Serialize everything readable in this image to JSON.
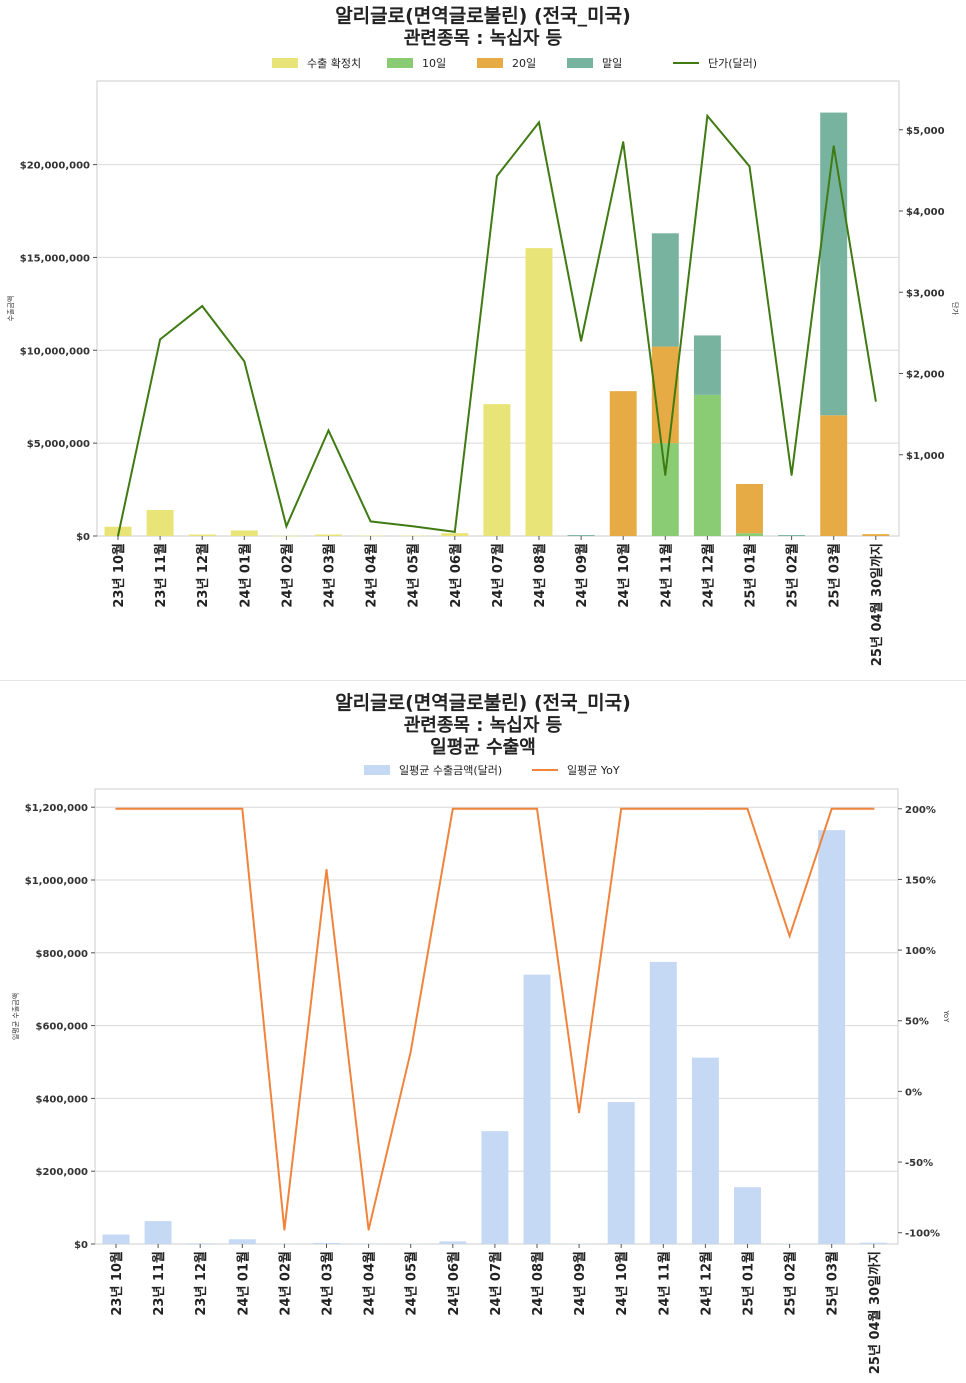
{
  "categories": [
    "23년 10월",
    "23년 11월",
    "23년 12월",
    "24년 01월",
    "24년 02월",
    "24년 03월",
    "24년 04월",
    "24년 05월",
    "24년 06월",
    "24년 07월",
    "24년 08월",
    "24년 09월",
    "24년 10월",
    "24년 11월",
    "24년 12월",
    "25년 01월",
    "25년 02월",
    "25년 03월",
    "25년 04월 30일까지"
  ],
  "chart_data": [
    {
      "type": "bar",
      "title": "알리글로(면역글로불린) (전국_미국)",
      "subtitle": "관련종목 : 녹십자 등",
      "ylabel": "수출금액",
      "y2label": "단가",
      "ylim": [
        0,
        24500000
      ],
      "y2lim": [
        0,
        5600
      ],
      "yticks": [
        0,
        5000000,
        10000000,
        15000000,
        20000000
      ],
      "ytick_labels": [
        "$0",
        "$5,000,000",
        "$10,000,000",
        "$15,000,000",
        "$20,000,000"
      ],
      "y2ticks": [
        1000,
        2000,
        3000,
        4000,
        5000
      ],
      "y2tick_labels": [
        "$1,000",
        "$2,000",
        "$3,000",
        "$4,000",
        "$5,000"
      ],
      "legend_position": "top-center",
      "grid": true,
      "series": [
        {
          "name": "수출 확정치",
          "kind": "bar",
          "color": "#e8e477",
          "values": [
            500000,
            1400000,
            80000,
            300000,
            10000,
            80000,
            20000,
            20000,
            150000,
            7100000,
            15500000,
            0,
            0,
            0,
            0,
            0,
            0,
            0,
            0
          ]
        },
        {
          "name": "10일",
          "kind": "bar",
          "color": "#89cc73",
          "values": [
            0,
            0,
            0,
            0,
            0,
            0,
            0,
            0,
            0,
            0,
            0,
            0,
            0,
            5000000,
            7600000,
            150000,
            0,
            0,
            0
          ]
        },
        {
          "name": "20일",
          "kind": "bar",
          "color": "#e7ab45",
          "values": [
            0,
            0,
            0,
            0,
            0,
            0,
            0,
            0,
            0,
            0,
            0,
            0,
            7800000,
            5200000,
            0,
            2650000,
            0,
            6500000,
            100000
          ]
        },
        {
          "name": "말일",
          "kind": "bar",
          "color": "#78b39f",
          "values": [
            0,
            0,
            0,
            0,
            0,
            0,
            0,
            0,
            0,
            0,
            0,
            50000,
            0,
            6100000,
            3200000,
            0,
            50000,
            16300000,
            0
          ]
        },
        {
          "name": "단가(달러)",
          "kind": "line",
          "color": "#3f7a12",
          "values": [
            0,
            2420,
            2830,
            2150,
            120,
            1300,
            180,
            120,
            50,
            4430,
            5090,
            2400,
            4850,
            750,
            5170,
            4550,
            750,
            4800,
            1660
          ]
        }
      ]
    },
    {
      "type": "bar",
      "title": "알리글로(면역글로불린) (전국_미국)",
      "subtitle": "관련종목 : 녹십자 등",
      "subtitle2": "일평균 수출액",
      "ylabel": "일평균 수출금액",
      "y2label": "YoY",
      "ylim": [
        0,
        1250000
      ],
      "y2lim": [
        -108,
        214
      ],
      "yticks": [
        0,
        200000,
        400000,
        600000,
        800000,
        1000000,
        1200000
      ],
      "ytick_labels": [
        "$0",
        "$200,000",
        "$400,000",
        "$600,000",
        "$800,000",
        "$1,000,000",
        "$1,200,000"
      ],
      "y2ticks": [
        -100,
        -50,
        0,
        50,
        100,
        150,
        200
      ],
      "y2tick_labels": [
        "-100%",
        "-50%",
        "0%",
        "50%",
        "100%",
        "150%",
        "200%"
      ],
      "legend_position": "top-center",
      "grid": true,
      "series": [
        {
          "name": "일평균 수출금액(달러)",
          "kind": "bar",
          "color": "#c5d9f4",
          "values": [
            26000,
            63000,
            2000,
            13000,
            500,
            3000,
            500,
            1000,
            7000,
            310000,
            740000,
            1000,
            390000,
            775000,
            512000,
            156000,
            1000,
            1137000,
            3500
          ]
        },
        {
          "name": "일평균 YoY",
          "kind": "line",
          "color": "#f0843c",
          "values": [
            200,
            200,
            200,
            200,
            -98,
            157,
            -98,
            28,
            200,
            200,
            200,
            -15,
            200,
            200,
            200,
            200,
            110,
            200,
            200
          ]
        }
      ]
    }
  ]
}
